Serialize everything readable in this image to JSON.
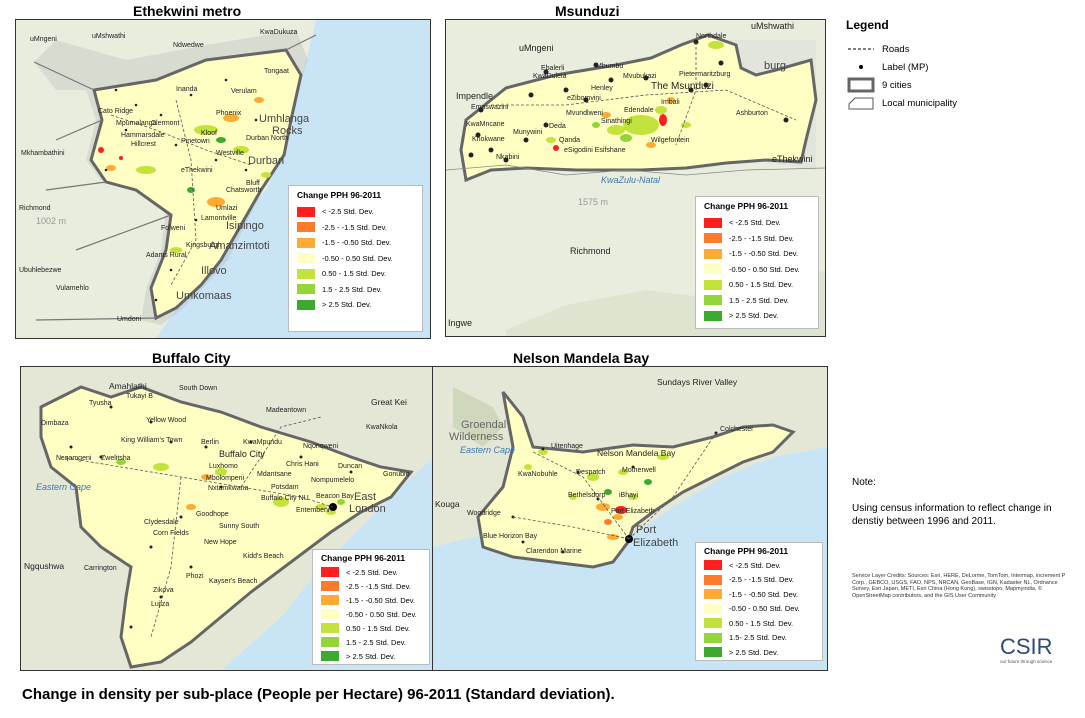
{
  "caption": "Change in density per sub-place (People per Hectare) 96-2011 (Standard deviation).",
  "colors": {
    "class1": "#ff1f1f",
    "class2": "#ff7b2c",
    "class3": "#ffaa33",
    "class4": "#ffffc4",
    "class5": "#c3e23b",
    "class6": "#94d63a",
    "class7": "#3caa2e",
    "boundary": "#666666",
    "ocean": "#c9e5f5",
    "land": "#e9edde"
  },
  "main_legend": {
    "title": "Legend",
    "items": [
      {
        "symbol": "dashed-line",
        "label": "Roads"
      },
      {
        "symbol": "dot",
        "label": "Label (MP)"
      },
      {
        "symbol": "thick-box",
        "label": "9 cities"
      },
      {
        "symbol": "thin-box",
        "label": "Local municipality"
      }
    ]
  },
  "note": {
    "heading": "Note:",
    "text": "Using census information to reflect change in denstiy between 1996 and 2011."
  },
  "credits": "Service Layer Credits: Sources: Esri, HERE, DeLorme, TomTom, Intermap, increment P Corp., GEBCO, USGS, FAO, NPS, NRCAN, GeoBase, IGN, Kadaster NL, Ordnance Survey, Esri Japan, METI, Esri China (Hong Kong), swisstopo, Mapmyindia, © OpenStreetMap contributors, and the GIS User Community",
  "logo": {
    "text": "CSIR",
    "tagline": "our future through science"
  },
  "panels": {
    "ethekwini": {
      "title": "Ethekwini metro",
      "legend_title": "Change PPH 96-2011",
      "legend_labels": [
        "< -2.5 Std. Dev.",
        "-2.5 - -1.5 Std. Dev.",
        "-1.5 - -0.50 Std. Dev.",
        "-0.50 - 0.50 Std. Dev.",
        "0.50 - 1.5 Std. Dev.",
        "1.5 - 2.5 Std. Dev.",
        "> 2.5 Std. Dev."
      ],
      "places": [
        "uMngeni",
        "uMshwathi",
        "Ndwedwe",
        "KwaDukuza",
        "Mkhambathini",
        "Richmond",
        "Ubuhlebezwe",
        "Vulamehlo",
        "Umdoni",
        "Durban",
        "eThekwini",
        "Umhlanga Rocks",
        "Amanzimtoti",
        "Isipingo",
        "Illovo",
        "Umkomaas",
        "Pinetown",
        "Chatsworth",
        "Kloof",
        "Hillcrest",
        "Inanda",
        "Verulam",
        "Tongaat",
        "Westville",
        "Umlazi",
        "Phoenix",
        "Cato Ridge",
        "Mpumalanga",
        "Hammarsdale",
        "Clermont",
        "Durban North",
        "Bluff",
        "Lamontville",
        "Folweni",
        "Adams Rural",
        "Kingsburgh"
      ],
      "bg_labels": [
        "Umhlanga",
        "Rocks",
        "Durban",
        "Isipingo",
        "Amanzimtoti",
        "Illovo",
        "Umkomaas",
        "1002 m"
      ]
    },
    "msunduzi": {
      "title": "Msunduzi",
      "legend_title": "Change PPH 96-2011",
      "legend_labels": [
        "< -2.5 Std. Dev.",
        "-2.5 - -1.5 Std. Dev.",
        "-1.5 - -0.50 Std. Dev.",
        "-0.50 - 0.50 Std. Dev.",
        "0.50 - 1.5 Std. Dev.",
        "1.5 - 2.5 Std. Dev.",
        "> 2.5 Std. Dev."
      ],
      "places": [
        "uMngeni",
        "uMshwathi",
        "Northdale",
        "Ebalerli",
        "KwaDulela",
        "Mbumbu",
        "Mvubukazi",
        "Pietermaritzburg",
        "Henley",
        "eZibomvini",
        "The Msunduzi",
        "Imbali",
        "Ashburton",
        "Edendale",
        "Emaswazini",
        "Mvundlweni",
        "Sinathingi",
        "KwaMncane",
        "Munywini",
        "Deda",
        "Khokwane",
        "Qanda",
        "Wilgefontein",
        "Nkabini",
        "eSigodini Esifshane",
        "Impendle",
        "eThekwini",
        "Richmond",
        "Ingwe"
      ],
      "bg_labels": [
        "KwaZulu-Natal",
        "1575 m",
        "burg"
      ]
    },
    "buffalo": {
      "title": "Buffalo City",
      "legend_title": "Change PPH 96-2011",
      "legend_labels": [
        "< -2.5 Std. Dev.",
        "-2.5 - -1.5 Std. Dev.",
        "-1.5 - -0.50 Std. Dev.",
        "-0.50 - 0.50 Std. Dev.",
        "0.50 - 1.5 Std. Dev.",
        "1.5 - 2.5 Std. Dev.",
        "> 2.5 Std. Dev."
      ],
      "places": [
        "Amahlathi",
        "South Down",
        "Tyusha",
        "Tukayi B",
        "Dimbaza",
        "Yellow Wood",
        "Madeantown",
        "King William's Town",
        "Berlin",
        "KwaMpundu",
        "Nqonqweni",
        "Buffalo City",
        "Chris Hani",
        "Duncan",
        "Ncqamgeni",
        "Zwelitsha",
        "Nompumelelo",
        "Gonubie",
        "Mdantsane",
        "Potsdam",
        "Luxhomo",
        "Mbolompeni",
        "Nxtamkwana",
        "Buffalo City NU",
        "Beacon Bay",
        "East London",
        "Entembeni",
        "Clydesdale",
        "Sunny South",
        "Corn Fields",
        "Goodhope",
        "New Hope",
        "Kidd's Beach",
        "Kayser's Beach",
        "Zikova",
        "Lujiza",
        "Ngqushwa",
        "Great Kei",
        "KwaNkola",
        "Phozi",
        "Carrington"
      ],
      "bg_labels": [
        "Eastern Cape",
        "East",
        "London"
      ]
    },
    "nelson": {
      "title": "Nelson Mandela Bay",
      "legend_title": "Change PPH 96-2011",
      "legend_labels": [
        "< -2.5 Std. Dev.",
        "-2.5 - -1.5 Std. Dev.",
        "-1.5 - -0.50 Std. Dev.",
        "-0.50 - 0.50 Std. Dev.",
        "0.50 - 1.5 Std. Dev.",
        "1.5- 2.5 Std. Dev.",
        "> 2.5 Std. Dev."
      ],
      "places": [
        "Sundays River Valley",
        "Colchester",
        "Uitenhage",
        "Nelson Mandela Bay",
        "KwaNobuhle",
        "Despatch",
        "Motherwell",
        "Bethelsdorp",
        "iBhayi",
        "Port Elizabeth",
        "Woodridge",
        "Blue Horizon Bay",
        "Clarendon Marine",
        "Kouga"
      ],
      "bg_labels": [
        "Groendal",
        "Wilderness",
        "Eastern Cape",
        "Port",
        "Elizabeth"
      ]
    }
  }
}
